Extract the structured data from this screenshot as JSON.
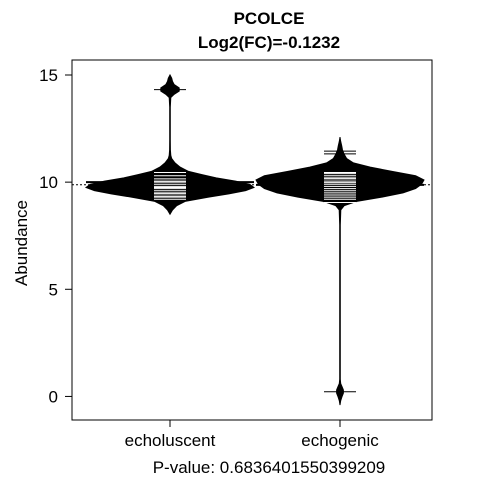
{
  "chart_data": {
    "type": "beanplot",
    "title": "PCOLCE",
    "subtitle": "Log2(FC)=-0.1232",
    "xlabel": "P-value: 0.6836401550399209",
    "ylabel": "Abundance",
    "ylim": [
      -1.1,
      15.7
    ],
    "yticks": [
      0,
      5,
      10,
      15
    ],
    "overall_mean": 9.88,
    "grid": false,
    "categories": [
      "echoluscent",
      "echogenic"
    ],
    "groups": [
      {
        "name": "echoluscent",
        "mean": 10.0,
        "density": [
          [
            8.5,
            0.0
          ],
          [
            8.7,
            0.03
          ],
          [
            8.9,
            0.08
          ],
          [
            9.1,
            0.18
          ],
          [
            9.3,
            0.46
          ],
          [
            9.45,
            0.7
          ],
          [
            9.6,
            0.9
          ],
          [
            9.75,
            1.0
          ],
          [
            9.9,
            0.95
          ],
          [
            10.05,
            0.78
          ],
          [
            10.2,
            0.55
          ],
          [
            10.35,
            0.38
          ],
          [
            10.5,
            0.22
          ],
          [
            10.7,
            0.12
          ],
          [
            10.9,
            0.06
          ],
          [
            11.1,
            0.02
          ],
          [
            11.25,
            0.01
          ],
          [
            11.5,
            0.005
          ],
          [
            12.0,
            0.004
          ],
          [
            12.5,
            0.004
          ],
          [
            13.0,
            0.004
          ],
          [
            13.5,
            0.004
          ],
          [
            13.95,
            0.01
          ],
          [
            14.1,
            0.05
          ],
          [
            14.25,
            0.11
          ],
          [
            14.4,
            0.11
          ],
          [
            14.55,
            0.05
          ],
          [
            14.7,
            0.03
          ],
          [
            14.85,
            0.02
          ],
          [
            15.0,
            0.0
          ]
        ],
        "points": [
          9.2,
          9.3,
          9.35,
          9.45,
          9.5,
          9.6,
          9.7,
          9.75,
          9.8,
          9.9,
          10.0,
          10.05,
          10.15,
          10.3,
          10.45,
          14.32
        ]
      },
      {
        "name": "echogenic",
        "mean": 9.87,
        "density": [
          [
            -0.4,
            0.0
          ],
          [
            -0.2,
            0.008
          ],
          [
            0.0,
            0.025
          ],
          [
            0.15,
            0.04
          ],
          [
            0.3,
            0.04
          ],
          [
            0.45,
            0.025
          ],
          [
            0.6,
            0.008
          ],
          [
            0.8,
            0.003
          ],
          [
            2.0,
            0.003
          ],
          [
            4.0,
            0.003
          ],
          [
            6.0,
            0.003
          ],
          [
            8.0,
            0.003
          ],
          [
            8.7,
            0.01
          ],
          [
            8.9,
            0.05
          ],
          [
            9.1,
            0.2
          ],
          [
            9.3,
            0.5
          ],
          [
            9.5,
            0.75
          ],
          [
            9.7,
            0.9
          ],
          [
            9.9,
            0.97
          ],
          [
            10.1,
            1.0
          ],
          [
            10.3,
            0.9
          ],
          [
            10.5,
            0.62
          ],
          [
            10.7,
            0.36
          ],
          [
            10.9,
            0.16
          ],
          [
            11.1,
            0.08
          ],
          [
            11.3,
            0.05
          ],
          [
            11.5,
            0.03
          ],
          [
            11.7,
            0.02
          ],
          [
            11.9,
            0.008
          ],
          [
            12.1,
            0.0
          ]
        ],
        "points": [
          9.05,
          9.2,
          9.3,
          9.4,
          9.5,
          9.6,
          9.7,
          9.8,
          9.9,
          9.98,
          10.05,
          10.15,
          10.2,
          10.3,
          10.4,
          10.45,
          11.32,
          11.45,
          0.22
        ]
      }
    ]
  }
}
